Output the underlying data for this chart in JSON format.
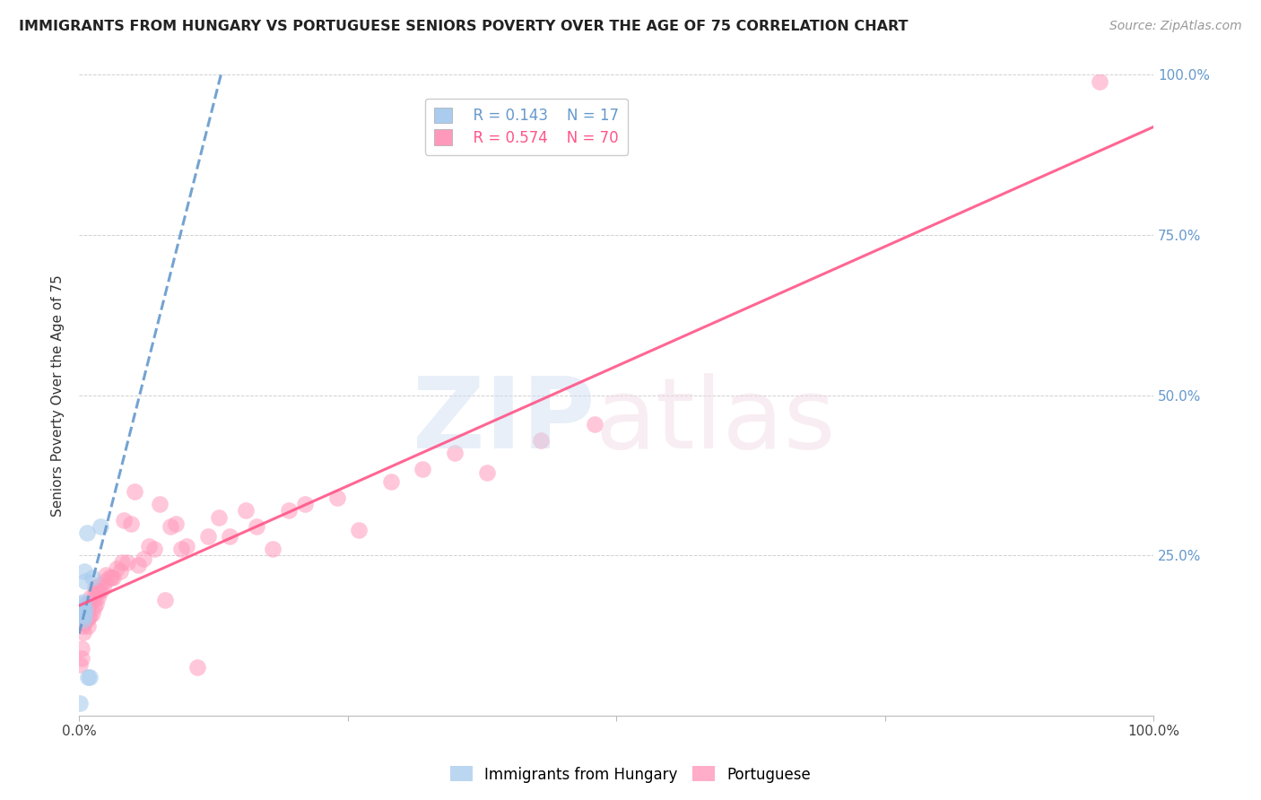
{
  "title": "IMMIGRANTS FROM HUNGARY VS PORTUGUESE SENIORS POVERTY OVER THE AGE OF 75 CORRELATION CHART",
  "source": "Source: ZipAtlas.com",
  "ylabel": "Seniors Poverty Over the Age of 75",
  "xlim": [
    0.0,
    1.0
  ],
  "ylim": [
    0.0,
    1.0
  ],
  "legend_label1": "Immigrants from Hungary",
  "legend_label2": "Portuguese",
  "R1": 0.143,
  "N1": 17,
  "R2": 0.574,
  "N2": 70,
  "color_hungary": "#aaccee",
  "color_portuguese": "#ff99bb",
  "color_line_hungary": "#6699cc",
  "color_line_portuguese": "#ff5588",
  "hungary_x": [
    0.001,
    0.002,
    0.002,
    0.003,
    0.003,
    0.003,
    0.004,
    0.004,
    0.005,
    0.005,
    0.006,
    0.006,
    0.007,
    0.008,
    0.01,
    0.012,
    0.02
  ],
  "hungary_y": [
    0.02,
    0.155,
    0.175,
    0.16,
    0.165,
    0.17,
    0.15,
    0.178,
    0.155,
    0.225,
    0.21,
    0.165,
    0.285,
    0.06,
    0.06,
    0.215,
    0.295
  ],
  "portuguese_x": [
    0.001,
    0.002,
    0.002,
    0.003,
    0.003,
    0.004,
    0.004,
    0.005,
    0.005,
    0.006,
    0.007,
    0.007,
    0.008,
    0.008,
    0.009,
    0.009,
    0.01,
    0.01,
    0.011,
    0.012,
    0.013,
    0.014,
    0.015,
    0.015,
    0.016,
    0.017,
    0.018,
    0.019,
    0.02,
    0.022,
    0.024,
    0.025,
    0.028,
    0.03,
    0.032,
    0.035,
    0.038,
    0.04,
    0.042,
    0.045,
    0.048,
    0.052,
    0.055,
    0.06,
    0.065,
    0.07,
    0.075,
    0.08,
    0.085,
    0.09,
    0.095,
    0.1,
    0.11,
    0.12,
    0.13,
    0.14,
    0.155,
    0.165,
    0.18,
    0.195,
    0.21,
    0.24,
    0.26,
    0.29,
    0.32,
    0.35,
    0.38,
    0.43,
    0.48,
    0.95
  ],
  "portuguese_y": [
    0.08,
    0.09,
    0.105,
    0.14,
    0.155,
    0.13,
    0.165,
    0.145,
    0.155,
    0.16,
    0.15,
    0.175,
    0.14,
    0.165,
    0.155,
    0.175,
    0.155,
    0.175,
    0.185,
    0.16,
    0.18,
    0.17,
    0.19,
    0.2,
    0.175,
    0.185,
    0.195,
    0.205,
    0.195,
    0.2,
    0.21,
    0.22,
    0.215,
    0.215,
    0.215,
    0.23,
    0.225,
    0.24,
    0.305,
    0.24,
    0.3,
    0.35,
    0.235,
    0.245,
    0.265,
    0.26,
    0.33,
    0.18,
    0.295,
    0.3,
    0.26,
    0.265,
    0.075,
    0.28,
    0.31,
    0.28,
    0.32,
    0.295,
    0.26,
    0.32,
    0.33,
    0.34,
    0.29,
    0.365,
    0.385,
    0.41,
    0.38,
    0.43,
    0.455,
    0.99
  ]
}
